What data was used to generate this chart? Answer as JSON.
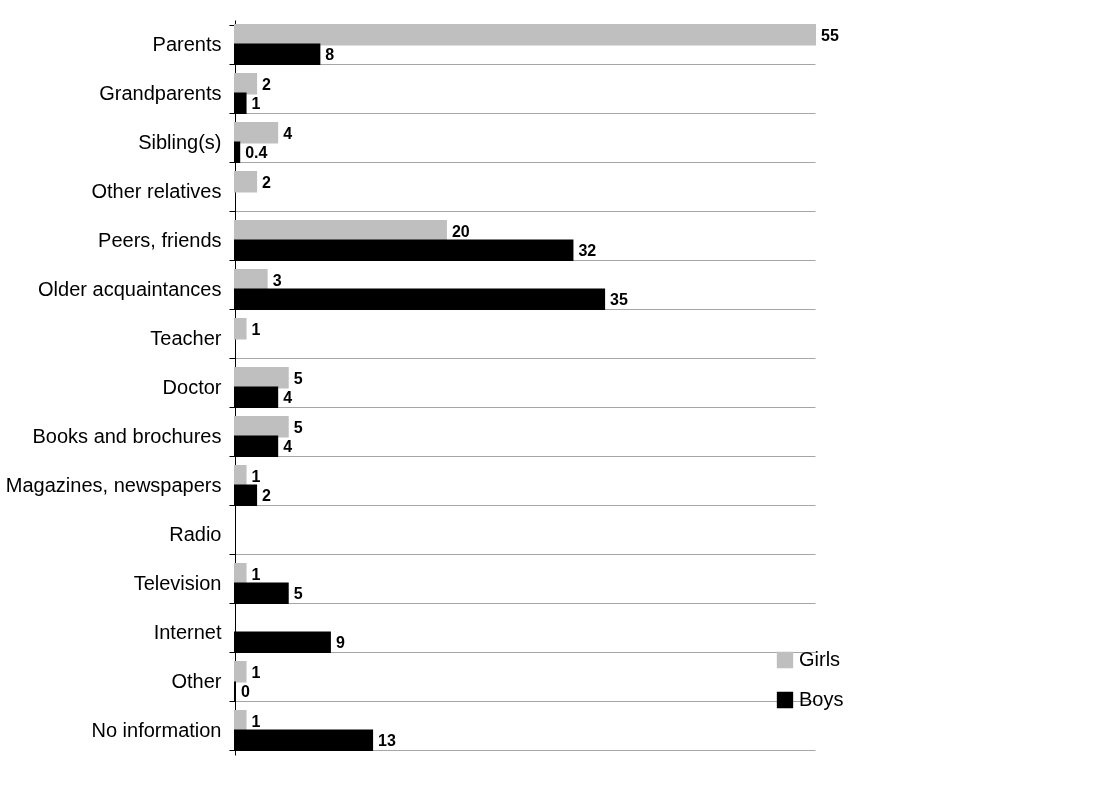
{
  "chart_data": {
    "type": "bar",
    "orientation": "horizontal",
    "data_labels": true,
    "grid": "y",
    "legend": "bottom right",
    "categories": [
      "Parents",
      "Grandparents",
      "Sibling(s)",
      "Other relatives",
      "Peers, friends",
      "Older acquaintances",
      "Teacher",
      "Doctor",
      "Books and brochures",
      "Magazines, newspapers",
      "Radio",
      "Television",
      "Internet",
      "Other",
      "No information"
    ],
    "series": [
      {
        "name": "Girls",
        "color": "#bfbfbf",
        "values": [
          55,
          2,
          4,
          2,
          20,
          3,
          1,
          5,
          5,
          1,
          null,
          1,
          null,
          1,
          1
        ]
      },
      {
        "name": "Boys",
        "color": "#000000",
        "values": [
          8,
          1,
          0.4,
          null,
          32,
          35,
          null,
          4,
          4,
          2,
          null,
          5,
          9,
          0,
          13
        ]
      }
    ]
  }
}
